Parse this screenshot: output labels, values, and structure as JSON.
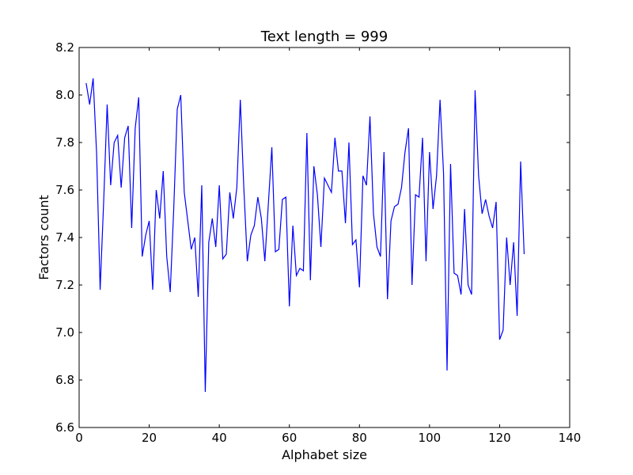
{
  "chart_data": {
    "type": "line",
    "title": "Text length = 999",
    "xlabel": "Alphabet size",
    "ylabel": "Factors count",
    "xlim": [
      0,
      140
    ],
    "ylim": [
      6.6,
      8.2
    ],
    "xticks": [
      0,
      20,
      40,
      60,
      80,
      100,
      120,
      140
    ],
    "yticks": [
      6.6,
      6.8,
      7.0,
      7.2,
      7.4,
      7.6,
      7.8,
      8.0,
      8.2
    ],
    "grid": false,
    "line_color": "#0000ff",
    "series": [
      {
        "x": [
          2,
          3,
          4,
          5,
          6,
          7,
          8,
          9,
          10,
          11,
          12,
          13,
          14,
          15,
          16,
          17,
          18,
          19,
          20,
          21,
          22,
          23,
          24,
          25,
          26,
          27,
          28,
          29,
          30,
          31,
          32,
          33,
          34,
          35,
          36,
          37,
          38,
          39,
          40,
          41,
          42,
          43,
          44,
          45,
          46,
          47,
          48,
          49,
          50,
          51,
          52,
          53,
          54,
          55,
          56,
          57,
          58,
          59,
          60,
          61,
          62,
          63,
          64,
          65,
          66,
          67,
          68,
          69,
          70,
          71,
          72,
          73,
          74,
          75,
          76,
          77,
          78,
          79,
          80,
          81,
          82,
          83,
          84,
          85,
          86,
          87,
          88,
          89,
          90,
          91,
          92,
          93,
          94,
          95,
          96,
          97,
          98,
          99,
          100,
          101,
          102,
          103,
          104,
          105,
          106,
          107,
          108,
          109,
          110,
          111,
          112,
          113,
          114,
          115,
          116,
          117,
          118,
          119,
          120,
          121,
          122,
          123,
          124,
          125,
          126,
          127
        ],
        "y": [
          8.05,
          7.96,
          8.07,
          7.75,
          7.18,
          7.55,
          7.96,
          7.62,
          7.8,
          7.83,
          7.61,
          7.82,
          7.87,
          7.44,
          7.86,
          7.99,
          7.32,
          7.41,
          7.47,
          7.18,
          7.6,
          7.48,
          7.68,
          7.32,
          7.17,
          7.52,
          7.94,
          8.0,
          7.59,
          7.47,
          7.35,
          7.4,
          7.15,
          7.62,
          6.75,
          7.38,
          7.48,
          7.36,
          7.62,
          7.31,
          7.33,
          7.59,
          7.48,
          7.61,
          7.98,
          7.61,
          7.3,
          7.41,
          7.45,
          7.57,
          7.48,
          7.3,
          7.54,
          7.78,
          7.34,
          7.35,
          7.56,
          7.57,
          7.11,
          7.45,
          7.24,
          7.27,
          7.26,
          7.84,
          7.22,
          7.7,
          7.58,
          7.36,
          7.65,
          7.62,
          7.59,
          7.82,
          7.68,
          7.68,
          7.46,
          7.8,
          7.37,
          7.39,
          7.19,
          7.66,
          7.62,
          7.91,
          7.5,
          7.36,
          7.32,
          7.76,
          7.14,
          7.47,
          7.53,
          7.54,
          7.61,
          7.76,
          7.86,
          7.2,
          7.58,
          7.57,
          7.82,
          7.3,
          7.76,
          7.52,
          7.66,
          7.98,
          7.67,
          6.84,
          7.71,
          7.25,
          7.24,
          7.16,
          7.52,
          7.2,
          7.16,
          8.02,
          7.66,
          7.5,
          7.56,
          7.49,
          7.44,
          7.55,
          6.97,
          7.01,
          7.4,
          7.2,
          7.38,
          7.07,
          7.72,
          7.33
        ]
      }
    ]
  }
}
